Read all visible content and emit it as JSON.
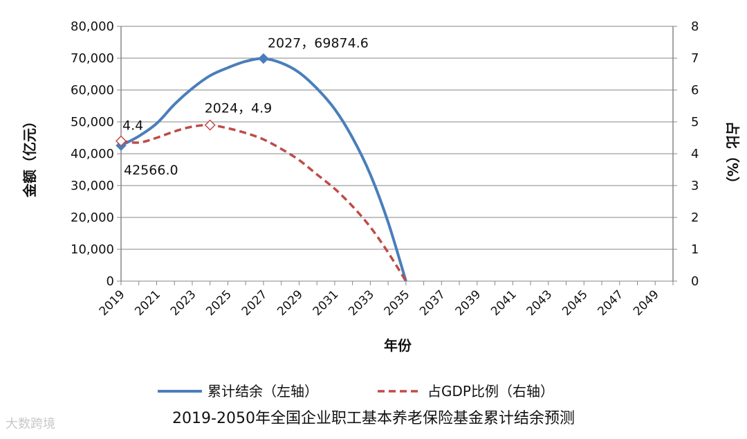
{
  "chart_data": {
    "type": "line",
    "caption": "2019-2050年全国企业职工基本养老保险基金累计结余预测",
    "xlabel": "年份",
    "ylabel_left": "金额（亿元）",
    "ylabel_right": "占比（%）",
    "x_range": [
      2019,
      2050
    ],
    "x_ticks": [
      "2019",
      "2021",
      "2023",
      "2025",
      "2027",
      "2029",
      "2031",
      "2033",
      "2035",
      "2037",
      "2039",
      "2041",
      "2043",
      "2045",
      "2047",
      "2049"
    ],
    "y_left_range": [
      0,
      80000
    ],
    "y_left_ticks": [
      "0",
      "10,000",
      "20,000",
      "30,000",
      "40,000",
      "50,000",
      "60,000",
      "70,000",
      "80,000"
    ],
    "y_right_range": [
      0,
      8
    ],
    "y_right_ticks": [
      "0",
      "1",
      "2",
      "3",
      "4",
      "5",
      "6",
      "7",
      "8"
    ],
    "grid": true,
    "legend_position": "bottom",
    "series": [
      {
        "name": "累计结余（左轴）",
        "axis": "left",
        "color": "#4a7ebb",
        "style": "solid",
        "x": [
          2019,
          2020,
          2021,
          2022,
          2023,
          2024,
          2025,
          2026,
          2027,
          2028,
          2029,
          2030,
          2031,
          2032,
          2033,
          2034,
          2035
        ],
        "values": [
          42566.0,
          45500,
          49500,
          55500,
          60500,
          64500,
          67000,
          69000,
          69874.6,
          68500,
          65500,
          60500,
          54000,
          45000,
          33500,
          18500,
          0
        ]
      },
      {
        "name": "占GDP比例（右轴）",
        "axis": "right",
        "color": "#be4b48",
        "style": "dashed",
        "x": [
          2019,
          2020,
          2021,
          2022,
          2023,
          2024,
          2025,
          2026,
          2027,
          2028,
          2029,
          2030,
          2031,
          2032,
          2033,
          2034,
          2035
        ],
        "values": [
          4.4,
          4.35,
          4.5,
          4.7,
          4.85,
          4.9,
          4.8,
          4.65,
          4.45,
          4.15,
          3.8,
          3.35,
          2.9,
          2.35,
          1.7,
          0.9,
          0
        ]
      }
    ],
    "annotations": [
      {
        "text": "2027，69874.6",
        "series": 0,
        "x": 2027,
        "y": 69874.6
      },
      {
        "text": "42566.0",
        "series": 0,
        "x": 2019,
        "y": 42566.0
      },
      {
        "text": "2024，4.9",
        "series": 1,
        "x": 2024,
        "y": 4.9
      },
      {
        "text": "4.4",
        "series": 1,
        "x": 2019,
        "y": 4.4
      }
    ]
  },
  "watermark": "大数跨境",
  "colors": {
    "grid": "#868686",
    "axis": "#868686",
    "text": "#111111"
  }
}
